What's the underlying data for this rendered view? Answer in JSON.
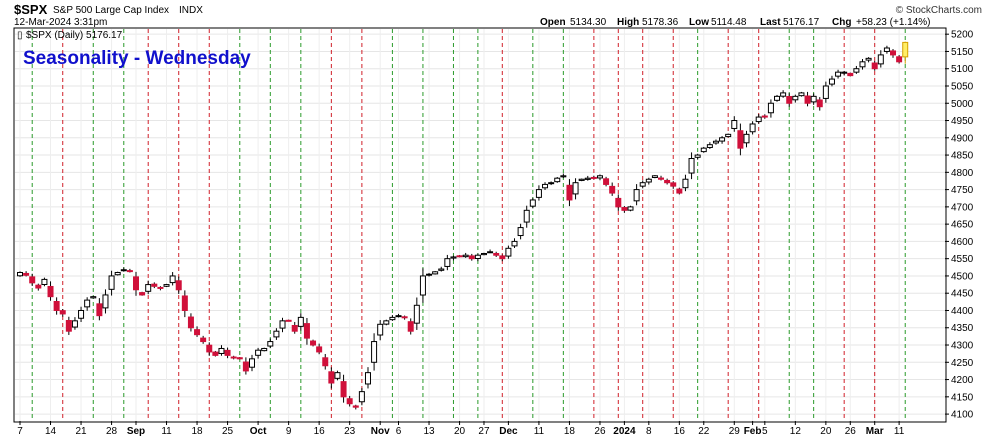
{
  "header": {
    "symbol": "$SPX",
    "name": "S&P 500 Large Cap Index",
    "exchange": "INDX",
    "date_time": "12-Mar-2024 3:31pm",
    "brand": "© StockCharts.com",
    "open_label": "Open",
    "open_value": "5134.30",
    "high_label": "High",
    "high_value": "5178.36",
    "low_label": "Low",
    "low_value": "5114.48",
    "last_label": "Last",
    "last_value": "5176.17",
    "chg_label": "Chg",
    "chg_value": "+58.23 (+1.14%)"
  },
  "legend_text": "$SPX (Daily) 5176.17",
  "annotation": "Seasonality - Wednesday",
  "colors": {
    "up_body": "#ffffff",
    "down_body": "#d0103a",
    "candle_outline": "#000000",
    "current_body": "#ffee66",
    "current_outline": "#d4a000",
    "wednesday_up_line": "#2a9a2a",
    "wednesday_down_line": "#d0202a",
    "annotation": "#1010cc"
  },
  "chart_data": {
    "type": "candlestick",
    "title": "$SPX S&P 500 Large Cap Index INDX",
    "ylim": [
      4080,
      5215
    ],
    "y_ticks": [
      4100,
      4150,
      4200,
      4250,
      4300,
      4350,
      4400,
      4450,
      4500,
      4550,
      4600,
      4650,
      4700,
      4750,
      4800,
      4850,
      4900,
      4950,
      5000,
      5050,
      5100,
      5150,
      5200
    ],
    "x_tick_labels": [
      {
        "i": 0,
        "label": "7"
      },
      {
        "i": 5,
        "label": "14"
      },
      {
        "i": 10,
        "label": "21"
      },
      {
        "i": 15,
        "label": "28"
      },
      {
        "i": 19,
        "label": "Sep"
      },
      {
        "i": 24,
        "label": "11"
      },
      {
        "i": 29,
        "label": "18"
      },
      {
        "i": 34,
        "label": "25"
      },
      {
        "i": 39,
        "label": "Oct"
      },
      {
        "i": 44,
        "label": "9"
      },
      {
        "i": 49,
        "label": "16"
      },
      {
        "i": 54,
        "label": "23"
      },
      {
        "i": 59,
        "label": "Nov"
      },
      {
        "i": 62,
        "label": "6"
      },
      {
        "i": 67,
        "label": "13"
      },
      {
        "i": 72,
        "label": "20"
      },
      {
        "i": 76,
        "label": "27"
      },
      {
        "i": 80,
        "label": "Dec"
      },
      {
        "i": 85,
        "label": "11"
      },
      {
        "i": 90,
        "label": "18"
      },
      {
        "i": 95,
        "label": "26"
      },
      {
        "i": 99,
        "label": "2024"
      },
      {
        "i": 103,
        "label": "8"
      },
      {
        "i": 108,
        "label": "16"
      },
      {
        "i": 112,
        "label": "22"
      },
      {
        "i": 117,
        "label": "29"
      },
      {
        "i": 120,
        "label": "Feb"
      },
      {
        "i": 122,
        "label": "5"
      },
      {
        "i": 127,
        "label": "12"
      },
      {
        "i": 132,
        "label": "20"
      },
      {
        "i": 136,
        "label": "26"
      },
      {
        "i": 140,
        "label": "Mar"
      },
      {
        "i": 144,
        "label": "11"
      }
    ],
    "wednesdays": [
      {
        "i": 2,
        "result": "up"
      },
      {
        "i": 7,
        "result": "down"
      },
      {
        "i": 12,
        "result": "up"
      },
      {
        "i": 17,
        "result": "up"
      },
      {
        "i": 21,
        "result": "down"
      },
      {
        "i": 26,
        "result": "down"
      },
      {
        "i": 31,
        "result": "down"
      },
      {
        "i": 36,
        "result": "up"
      },
      {
        "i": 41,
        "result": "up"
      },
      {
        "i": 46,
        "result": "up"
      },
      {
        "i": 51,
        "result": "down"
      },
      {
        "i": 56,
        "result": "down"
      },
      {
        "i": 61,
        "result": "up"
      },
      {
        "i": 66,
        "result": "up"
      },
      {
        "i": 71,
        "result": "up"
      },
      {
        "i": 75,
        "result": "up"
      },
      {
        "i": 79,
        "result": "down"
      },
      {
        "i": 84,
        "result": "up"
      },
      {
        "i": 89,
        "result": "up"
      },
      {
        "i": 94,
        "result": "down"
      },
      {
        "i": 98,
        "result": "down"
      },
      {
        "i": 102,
        "result": "down"
      },
      {
        "i": 107,
        "result": "down"
      },
      {
        "i": 111,
        "result": "up"
      },
      {
        "i": 116,
        "result": "down"
      },
      {
        "i": 121,
        "result": "down"
      },
      {
        "i": 126,
        "result": "up"
      },
      {
        "i": 130,
        "result": "up"
      },
      {
        "i": 135,
        "result": "down"
      },
      {
        "i": 140,
        "result": "down"
      },
      {
        "i": 145,
        "result": "up"
      }
    ],
    "closes": [
      4510,
      4502,
      4480,
      4465,
      4490,
      4440,
      4400,
      4390,
      4340,
      4370,
      4400,
      4430,
      4440,
      4385,
      4445,
      4500,
      4510,
      4518,
      4515,
      4460,
      4445,
      4475,
      4470,
      4465,
      4475,
      4500,
      4460,
      4400,
      4350,
      4330,
      4310,
      4280,
      4270,
      4290,
      4270,
      4265,
      4260,
      4225,
      4260,
      4285,
      4290,
      4310,
      4340,
      4370,
      4370,
      4340,
      4380,
      4320,
      4300,
      4280,
      4240,
      4190,
      4220,
      4150,
      4130,
      4120,
      4165,
      4220,
      4310,
      4360,
      4370,
      4380,
      4385,
      4380,
      4340,
      4415,
      4500,
      4505,
      4512,
      4520,
      4550,
      4555,
      4556,
      4560,
      4550,
      4560,
      4565,
      4570,
      4560,
      4550,
      4580,
      4600,
      4640,
      4690,
      4720,
      4750,
      4765,
      4770,
      4783,
      4790,
      4720,
      4770,
      4780,
      4783,
      4785,
      4790,
      4765,
      4740,
      4700,
      4690,
      4700,
      4750,
      4770,
      4780,
      4790,
      4780,
      4770,
      4760,
      4740,
      4780,
      4840,
      4850,
      4870,
      4880,
      4890,
      4900,
      4910,
      4950,
      4870,
      4910,
      4940,
      4960,
      4960,
      5000,
      5020,
      5030,
      5000,
      5020,
      5030,
      5000,
      5020,
      4990,
      5050,
      5070,
      5090,
      5090,
      5080,
      5100,
      5120,
      5130,
      5100,
      5140,
      5160,
      5140,
      5120,
      5176
    ],
    "first_open": 4500,
    "last_bar": {
      "open": 5134.3,
      "high": 5178.36,
      "low": 5114.48,
      "close": 5176.17
    }
  }
}
